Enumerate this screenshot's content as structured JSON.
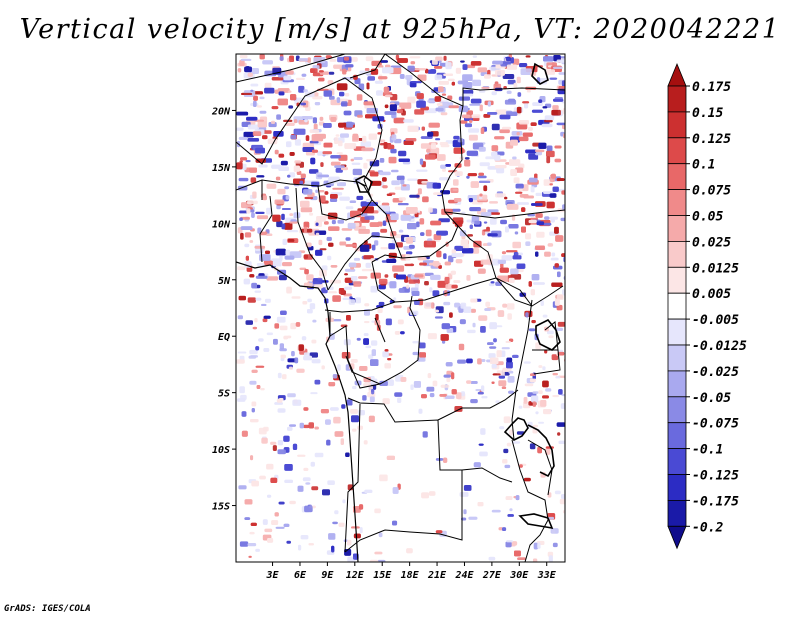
{
  "title": "Vertical velocity [m/s] at 925hPa, VT: 2020042221",
  "credit": "GrADS: IGES/COLA",
  "map": {
    "lon_range": [
      -1.0,
      35.0
    ],
    "lat_range": [
      -20.0,
      25.0
    ],
    "x_ticks": [
      "3E",
      "6E",
      "9E",
      "12E",
      "15E",
      "18E",
      "21E",
      "24E",
      "27E",
      "30E",
      "33E"
    ],
    "y_ticks": [
      "20N",
      "15N",
      "10N",
      "5N",
      "EQ",
      "5S",
      "10S",
      "15S"
    ]
  },
  "legend": {
    "levels": [
      "0.175",
      "0.15",
      "0.125",
      "0.1",
      "0.075",
      "0.05",
      "0.025",
      "0.0125",
      "0.005",
      "-0.005",
      "-0.0125",
      "-0.025",
      "-0.05",
      "-0.075",
      "-0.1",
      "-0.125",
      "-0.175",
      "-0.2"
    ],
    "colors": [
      "#a50f0f",
      "#b81e1e",
      "#cc3030",
      "#dd4a4a",
      "#e86868",
      "#f08a8a",
      "#f5aaaa",
      "#f9caca",
      "#fce6e6",
      "#ffffff",
      "#e6e6fc",
      "#c9c9f6",
      "#a9a9ef",
      "#8a8ae6",
      "#6a6ade",
      "#4a4ad4",
      "#2c2cc4",
      "#1a1aa8",
      "#100c8c"
    ]
  }
}
